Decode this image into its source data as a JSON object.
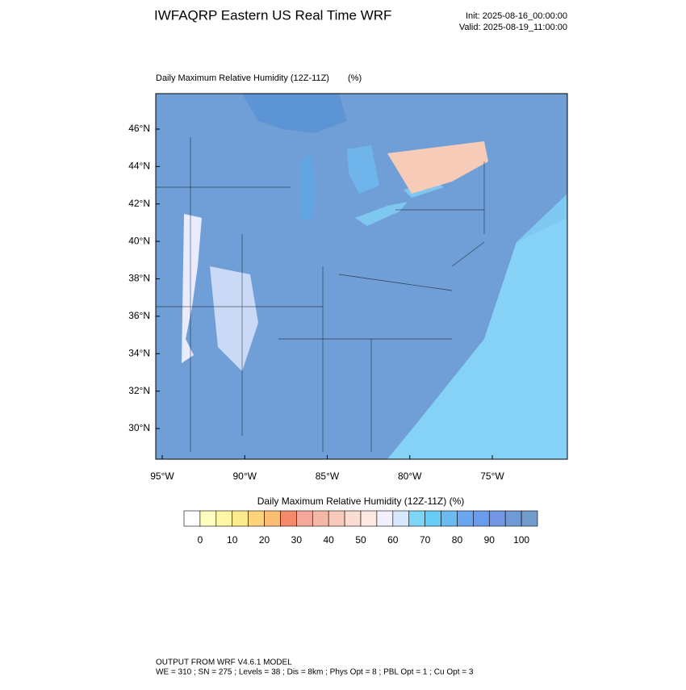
{
  "header": {
    "title": "IWFAQRP Eastern US Real Time WRF",
    "init": "Init: 2025-08-16_00:00:00",
    "valid": "Valid: 2025-08-19_11:00:00"
  },
  "map": {
    "title": "Daily Maximum Relative Humidity (12Z-11Z)",
    "units": "(%)",
    "lat_ticks": [
      {
        "value": 30,
        "label": "30°N"
      },
      {
        "value": 32,
        "label": "32°N"
      },
      {
        "value": 34,
        "label": "34°N"
      },
      {
        "value": 36,
        "label": "36°N"
      },
      {
        "value": 38,
        "label": "38°N"
      },
      {
        "value": 40,
        "label": "40°N"
      },
      {
        "value": 42,
        "label": "42°N"
      },
      {
        "value": 44,
        "label": "44°N"
      },
      {
        "value": 46,
        "label": "46°N"
      }
    ],
    "lon_ticks": [
      {
        "value": -95,
        "label": "95°W"
      },
      {
        "value": -90,
        "label": "90°W"
      },
      {
        "value": -85,
        "label": "85°W"
      },
      {
        "value": -80,
        "label": "80°W"
      },
      {
        "value": -75,
        "label": "75°W"
      }
    ]
  },
  "colorbar": {
    "title": "Daily Maximum Relative Humidity (12Z-11Z)  (%)",
    "ticks": [
      0,
      10,
      20,
      30,
      40,
      50,
      60,
      70,
      80,
      90,
      100
    ],
    "colors": [
      "#ffffff",
      "#ffffc0",
      "#fff7a6",
      "#fdeb8c",
      "#fdd47c",
      "#fbbe73",
      "#f48a6a",
      "#f5a89a",
      "#f4b8a8",
      "#f8cabc",
      "#fbdcd0",
      "#fde9e2",
      "#f0f0ff",
      "#d8e8ff",
      "#7fd6f4",
      "#66ccf5",
      "#6cbaf2",
      "#6ca6f0",
      "#6a9cee",
      "#7296e4",
      "#6f9ad6",
      "#6f9ccc"
    ]
  },
  "footer": {
    "line1": "OUTPUT FROM WRF V4.6.1 MODEL",
    "line2": "WE = 310 ; SN = 275 ; Levels = 38 ; Dis = 8km ; Phys Opt = 8 ; PBL Opt = 1 ; Cu Opt = 3"
  }
}
